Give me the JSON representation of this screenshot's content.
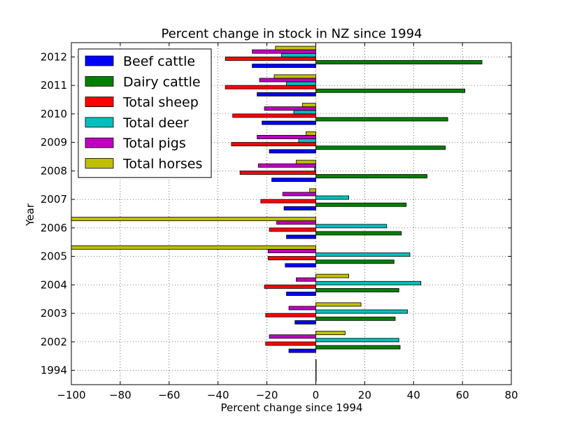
{
  "chart_data": {
    "type": "bar",
    "orientation": "horizontal",
    "title": "Percent change in stock in NZ since 1994",
    "xlabel": "Percent change since 1994",
    "ylabel": "Year",
    "xlim": [
      -100,
      80
    ],
    "xticks": [
      -100,
      -80,
      -60,
      -40,
      -20,
      0,
      20,
      40,
      60,
      80
    ],
    "xtick_labels": [
      "−100",
      "−80",
      "−60",
      "−40",
      "−20",
      "0",
      "20",
      "40",
      "60",
      "80"
    ],
    "grid": true,
    "legend_position": "top-left",
    "categories": [
      "1994",
      "2002",
      "2003",
      "2004",
      "2005",
      "2006",
      "2007",
      "2008",
      "2009",
      "2010",
      "2011",
      "2012"
    ],
    "series": [
      {
        "name": "Beef cattle",
        "color": "#0000ff",
        "values": [
          0,
          -11,
          -8.5,
          -12,
          -12.5,
          -12,
          -13,
          -18,
          -19,
          -22,
          -24,
          -26
        ]
      },
      {
        "name": "Dairy cattle",
        "color": "#008000",
        "values": [
          0,
          34.5,
          32.5,
          34,
          32,
          35,
          37,
          45.5,
          53,
          54,
          61,
          68
        ]
      },
      {
        "name": "Total sheep",
        "color": "#ff0000",
        "values": [
          0,
          -20.5,
          -20.5,
          -21,
          -19.5,
          -19,
          -22.5,
          -31,
          -34.5,
          -34,
          -37,
          -37
        ]
      },
      {
        "name": "Total deer",
        "color": "#00bfbf",
        "values": [
          0,
          34,
          37.5,
          43,
          38.5,
          29,
          13.5,
          -0.5,
          -7,
          -9,
          -12,
          -14
        ]
      },
      {
        "name": "Total pigs",
        "color": "#bf00bf",
        "values": [
          0,
          -19,
          -11,
          -8,
          -19.5,
          -16,
          -13.5,
          -23.5,
          -24,
          -21,
          -23,
          -26
        ]
      },
      {
        "name": "Total horses",
        "color": "#bfbf00",
        "values": [
          0,
          12,
          18.5,
          13.5,
          -100,
          -100,
          -2.5,
          -8,
          -4,
          -5.5,
          -17,
          -16.5
        ]
      }
    ]
  }
}
